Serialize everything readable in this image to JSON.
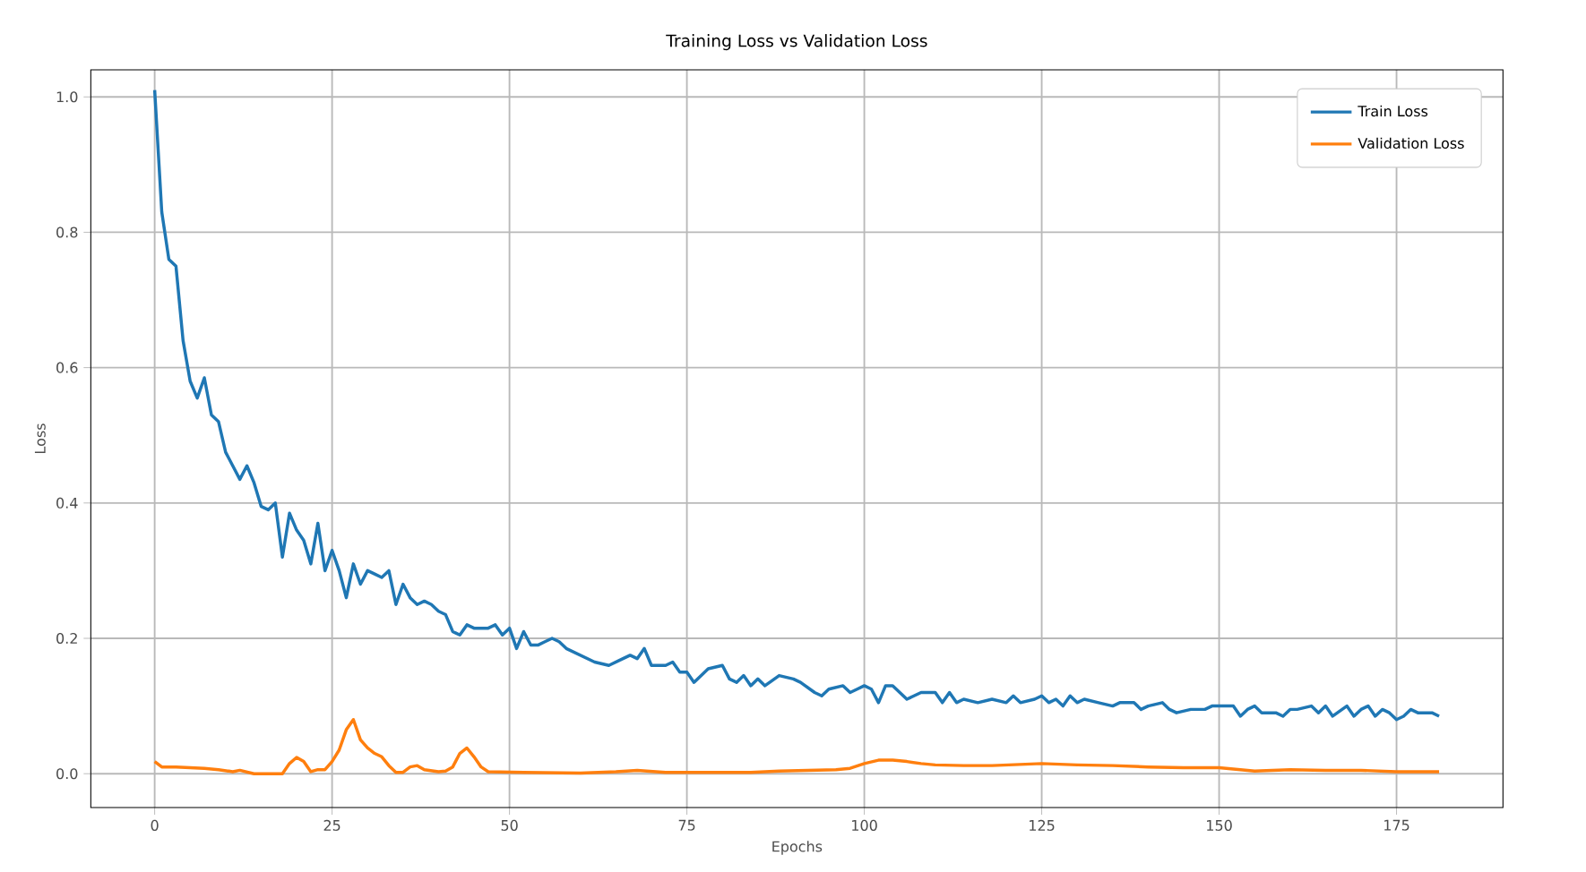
{
  "chart_data": {
    "type": "line",
    "title": "Training Loss vs Validation Loss",
    "xlabel": "Epochs",
    "ylabel": "Loss",
    "xlim": [
      -9,
      190
    ],
    "xticks": [
      0,
      25,
      50,
      75,
      100,
      125,
      150,
      175
    ],
    "ylim": [
      -0.05,
      1.04
    ],
    "yticks": [
      {
        "value": 0,
        "label": "0.0"
      },
      0.2,
      0.4,
      0.6,
      0.8,
      {
        "value": 1,
        "label": "1.0"
      }
    ],
    "grid": true,
    "legend": "top right",
    "line_style": "solid",
    "marker": "none",
    "series": [
      {
        "name": "Train Loss",
        "color": "#1f77b4",
        "x": [
          0,
          1,
          2,
          3,
          4,
          5,
          6,
          7,
          8,
          9,
          10,
          11,
          12,
          13,
          14,
          15,
          16,
          17,
          18,
          19,
          20,
          21,
          22,
          23,
          24,
          25,
          26,
          27,
          28,
          29,
          30,
          31,
          32,
          33,
          34,
          35,
          36,
          37,
          38,
          39,
          40,
          41,
          42,
          43,
          44,
          45,
          46,
          47,
          48,
          49,
          50,
          51,
          52,
          53,
          54,
          55,
          56,
          57,
          58,
          60,
          62,
          64,
          66,
          67,
          68,
          69,
          70,
          72,
          73,
          74,
          75,
          76,
          78,
          80,
          81,
          82,
          83,
          84,
          85,
          86,
          88,
          90,
          91,
          93,
          94,
          95,
          97,
          98,
          99,
          100,
          101,
          102,
          103,
          104,
          105,
          106,
          108,
          110,
          111,
          112,
          113,
          114,
          116,
          118,
          120,
          121,
          122,
          124,
          125,
          126,
          127,
          128,
          129,
          130,
          131,
          133,
          135,
          136,
          138,
          139,
          140,
          142,
          143,
          144,
          146,
          148,
          149,
          151,
          152,
          153,
          154,
          155,
          156,
          158,
          159,
          160,
          161,
          163,
          164,
          165,
          166,
          168,
          169,
          170,
          171,
          172,
          173,
          174,
          175,
          176,
          177,
          178,
          179,
          180,
          181
        ],
        "values": [
          1.01,
          0.83,
          0.76,
          0.75,
          0.64,
          0.58,
          0.555,
          0.585,
          0.53,
          0.52,
          0.475,
          0.455,
          0.435,
          0.455,
          0.43,
          0.395,
          0.39,
          0.4,
          0.32,
          0.385,
          0.36,
          0.345,
          0.31,
          0.37,
          0.3,
          0.33,
          0.3,
          0.26,
          0.31,
          0.28,
          0.3,
          0.295,
          0.29,
          0.3,
          0.25,
          0.28,
          0.26,
          0.25,
          0.255,
          0.25,
          0.24,
          0.235,
          0.21,
          0.205,
          0.22,
          0.215,
          0.215,
          0.215,
          0.22,
          0.205,
          0.215,
          0.185,
          0.21,
          0.19,
          0.19,
          0.195,
          0.2,
          0.195,
          0.185,
          0.175,
          0.165,
          0.16,
          0.17,
          0.175,
          0.17,
          0.185,
          0.16,
          0.16,
          0.165,
          0.15,
          0.15,
          0.135,
          0.155,
          0.16,
          0.14,
          0.135,
          0.145,
          0.13,
          0.14,
          0.13,
          0.145,
          0.14,
          0.135,
          0.12,
          0.115,
          0.125,
          0.13,
          0.12,
          0.125,
          0.13,
          0.125,
          0.105,
          0.13,
          0.13,
          0.12,
          0.11,
          0.12,
          0.12,
          0.105,
          0.12,
          0.105,
          0.11,
          0.105,
          0.11,
          0.105,
          0.115,
          0.105,
          0.11,
          0.115,
          0.105,
          0.11,
          0.1,
          0.115,
          0.105,
          0.11,
          0.105,
          0.1,
          0.105,
          0.105,
          0.095,
          0.1,
          0.105,
          0.095,
          0.09,
          0.095,
          0.095,
          0.1,
          0.1,
          0.1,
          0.085,
          0.095,
          0.1,
          0.09,
          0.09,
          0.085,
          0.095,
          0.095,
          0.1,
          0.09,
          0.1,
          0.085,
          0.1,
          0.085,
          0.095,
          0.1,
          0.085,
          0.095,
          0.09,
          0.08,
          0.085,
          0.095,
          0.09,
          0.09,
          0.09,
          0.085
        ]
      },
      {
        "name": "Validation Loss",
        "color": "#ff7f0e",
        "x": [
          0,
          1,
          3,
          5,
          7,
          9,
          11,
          12,
          14,
          18,
          19,
          20,
          21,
          22,
          23,
          24,
          25,
          26,
          27,
          28,
          29,
          30,
          31,
          32,
          33,
          34,
          35,
          36,
          37,
          38,
          40,
          41,
          42,
          43,
          44,
          45,
          46,
          47,
          52,
          60,
          65,
          68,
          72,
          78,
          84,
          88,
          92,
          96,
          98,
          100,
          102,
          104,
          106,
          108,
          110,
          114,
          118,
          125,
          130,
          135,
          140,
          145,
          150,
          155,
          160,
          165,
          170,
          175,
          181
        ],
        "values": [
          0.018,
          0.01,
          0.01,
          0.009,
          0.008,
          0.006,
          0.003,
          0.005,
          0.0,
          0.0,
          0.015,
          0.024,
          0.018,
          0.003,
          0.006,
          0.006,
          0.018,
          0.035,
          0.065,
          0.08,
          0.05,
          0.038,
          0.03,
          0.025,
          0.012,
          0.002,
          0.002,
          0.01,
          0.012,
          0.006,
          0.003,
          0.004,
          0.01,
          0.03,
          0.038,
          0.025,
          0.01,
          0.003,
          0.002,
          0.001,
          0.003,
          0.005,
          0.002,
          0.002,
          0.002,
          0.004,
          0.005,
          0.006,
          0.008,
          0.015,
          0.02,
          0.02,
          0.018,
          0.015,
          0.013,
          0.012,
          0.012,
          0.015,
          0.013,
          0.012,
          0.01,
          0.009,
          0.009,
          0.004,
          0.006,
          0.005,
          0.005,
          0.003,
          0.003
        ]
      }
    ]
  }
}
